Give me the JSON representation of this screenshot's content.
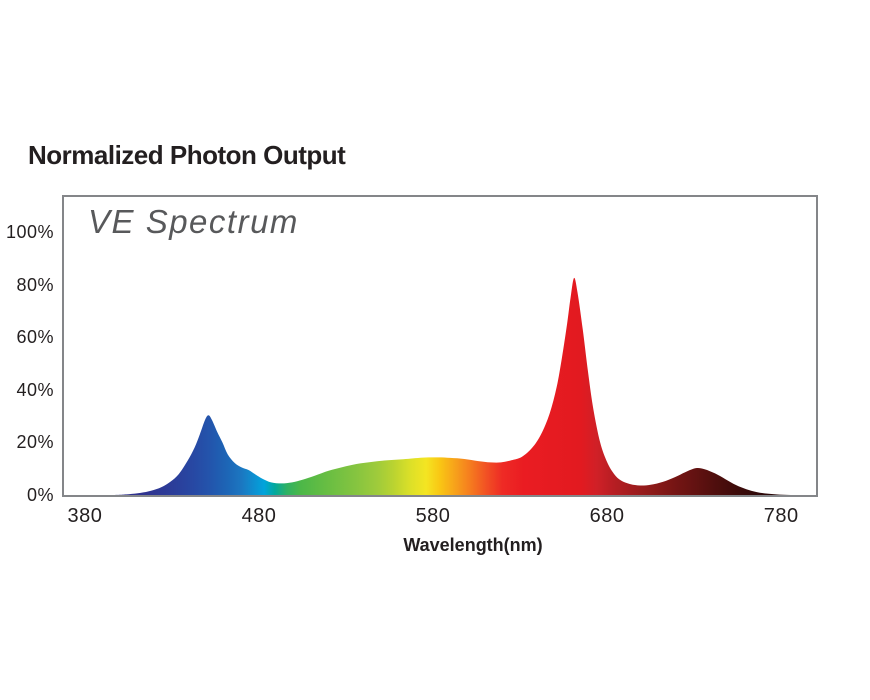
{
  "page": {
    "background": "#ffffff"
  },
  "header": {
    "title": "Normalized Photon Output"
  },
  "chart_data": {
    "type": "area",
    "title": "VE Spectrum",
    "xlabel": "Wavelength(nm)",
    "ylabel": "",
    "grid": false,
    "legend": "none",
    "x_domain": [
      368,
      800
    ],
    "ylim": [
      0,
      113.3
    ],
    "xticks": [
      380,
      480,
      580,
      680,
      780
    ],
    "yticks": [
      100,
      80,
      60,
      40,
      20,
      0
    ],
    "ytick_suffix": "%",
    "frame_color": "#848689",
    "inner_title_color": "#58595b",
    "text_color": "#231f20",
    "series": [
      {
        "name": "VE Spectrum",
        "unit": "% normalized photon output",
        "x": [
          368,
          395,
          405,
          412,
          418,
          424,
          429,
          434,
          439,
          443,
          446,
          449,
          451,
          453,
          456,
          459,
          462,
          466,
          470,
          474,
          478,
          482,
          487,
          493,
          499,
          505,
          512,
          520,
          528,
          536,
          545,
          554,
          563,
          574,
          583,
          590,
          598,
          606,
          613,
          619,
          625,
          631,
          637,
          642,
          647,
          651,
          654,
          657,
          659,
          661,
          663,
          666,
          669,
          672,
          676,
          680,
          684,
          688,
          693,
          699,
          705,
          712,
          719,
          725,
          731,
          736,
          742,
          748,
          754,
          760,
          766,
          772,
          779,
          788,
          800
        ],
        "y": [
          0,
          0,
          0.3,
          0.8,
          1.6,
          3,
          5,
          8,
          13,
          18,
          23,
          28.5,
          30.3,
          28.5,
          24,
          20,
          15.5,
          12.2,
          10.5,
          9.5,
          7.8,
          6.2,
          4.8,
          4.4,
          4.8,
          5.8,
          7.3,
          9.2,
          10.6,
          11.8,
          12.6,
          13.2,
          13.6,
          14.2,
          14.3,
          14.1,
          13.7,
          12.9,
          12.4,
          12.4,
          13.2,
          14.5,
          18,
          23,
          31,
          41,
          52,
          65,
          75,
          82.5,
          77,
          63,
          47,
          33,
          20,
          12.5,
          8,
          5.5,
          4.2,
          3.6,
          3.9,
          5,
          6.8,
          8.7,
          10.2,
          9.8,
          8.2,
          6,
          3.8,
          2.2,
          1.1,
          0.5,
          0.15,
          0,
          0
        ]
      }
    ],
    "peaks": [
      {
        "wavelength_nm": 450,
        "value_pct": 30
      },
      {
        "wavelength_nm": 660,
        "value_pct": 82.5
      },
      {
        "wavelength_nm": 731,
        "value_pct": 10
      }
    ],
    "gradient_stops": [
      {
        "wl": 368,
        "color": "#34308c"
      },
      {
        "wl": 415,
        "color": "#2f338f"
      },
      {
        "wl": 432,
        "color": "#2b3e9a"
      },
      {
        "wl": 443,
        "color": "#2749a4"
      },
      {
        "wl": 452,
        "color": "#2355ac"
      },
      {
        "wl": 461,
        "color": "#1d64b5"
      },
      {
        "wl": 470,
        "color": "#1b77c1"
      },
      {
        "wl": 477,
        "color": "#0e8fd0"
      },
      {
        "wl": 483,
        "color": "#01a4dc"
      },
      {
        "wl": 489,
        "color": "#02a89e"
      },
      {
        "wl": 496,
        "color": "#2eb163"
      },
      {
        "wl": 504,
        "color": "#4cb748"
      },
      {
        "wl": 518,
        "color": "#66bd43"
      },
      {
        "wl": 535,
        "color": "#84c440"
      },
      {
        "wl": 548,
        "color": "#9fcb3b"
      },
      {
        "wl": 558,
        "color": "#bcd430"
      },
      {
        "wl": 567,
        "color": "#dce028"
      },
      {
        "wl": 576,
        "color": "#f4e522"
      },
      {
        "wl": 584,
        "color": "#f9c614"
      },
      {
        "wl": 593,
        "color": "#f7a01b"
      },
      {
        "wl": 602,
        "color": "#f5791f"
      },
      {
        "wl": 611,
        "color": "#f14f24"
      },
      {
        "wl": 620,
        "color": "#ee2a25"
      },
      {
        "wl": 632,
        "color": "#ea1c22"
      },
      {
        "wl": 665,
        "color": "#e21a20"
      },
      {
        "wl": 674,
        "color": "#d02027"
      },
      {
        "wl": 684,
        "color": "#b61e23"
      },
      {
        "wl": 695,
        "color": "#a01c1e"
      },
      {
        "wl": 706,
        "color": "#8c1a19"
      },
      {
        "wl": 718,
        "color": "#771514"
      },
      {
        "wl": 731,
        "color": "#621211"
      },
      {
        "wl": 743,
        "color": "#4e0e0d"
      },
      {
        "wl": 755,
        "color": "#3d0b0a"
      },
      {
        "wl": 766,
        "color": "#300909"
      },
      {
        "wl": 778,
        "color": "#270707"
      },
      {
        "wl": 800,
        "color": "#200606"
      }
    ]
  }
}
